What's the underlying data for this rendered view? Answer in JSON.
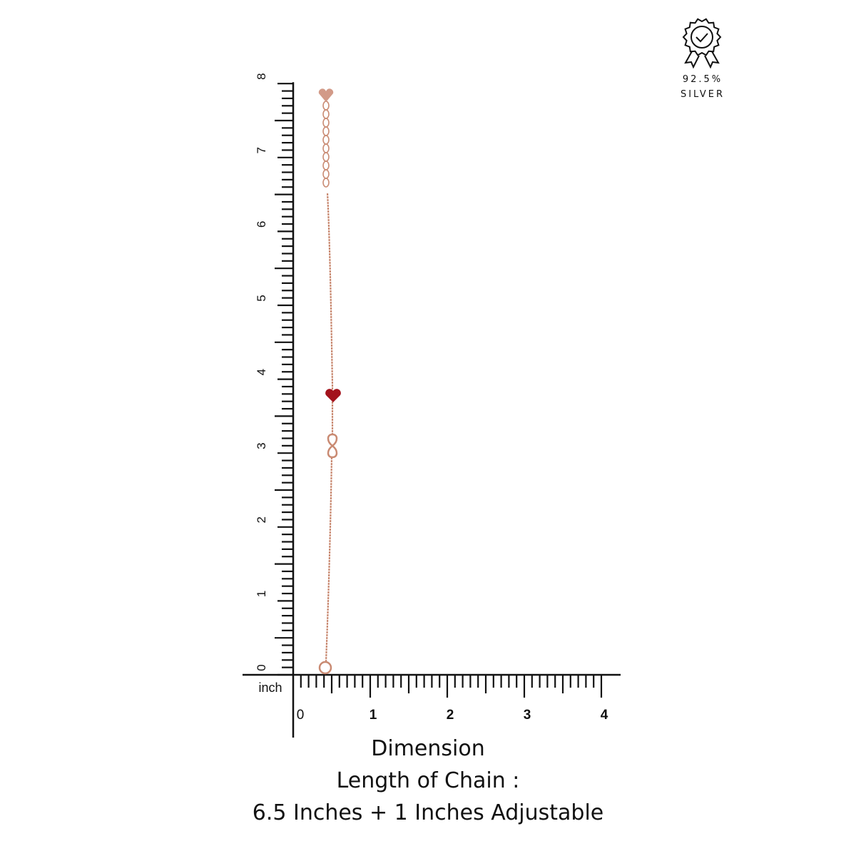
{
  "badge": {
    "icon": "award-check-icon",
    "purity": "92.5%",
    "metal": "SILVER"
  },
  "ruler": {
    "unit": "inch",
    "vertical_labels": [
      "0",
      "1",
      "2",
      "3",
      "4",
      "5",
      "6",
      "7",
      "8"
    ],
    "horizontal_labels": [
      "0",
      "1",
      "2",
      "3",
      "4"
    ],
    "ticks_per_inch": 10
  },
  "product": {
    "chain_color": "#c98a72",
    "charm_heart_color": "#a3121c",
    "end_tag_color": "#d29a88"
  },
  "caption": {
    "title": "Dimension",
    "line1": "Length of Chain :",
    "line2": "6.5 Inches + 1 Inches Adjustable"
  }
}
